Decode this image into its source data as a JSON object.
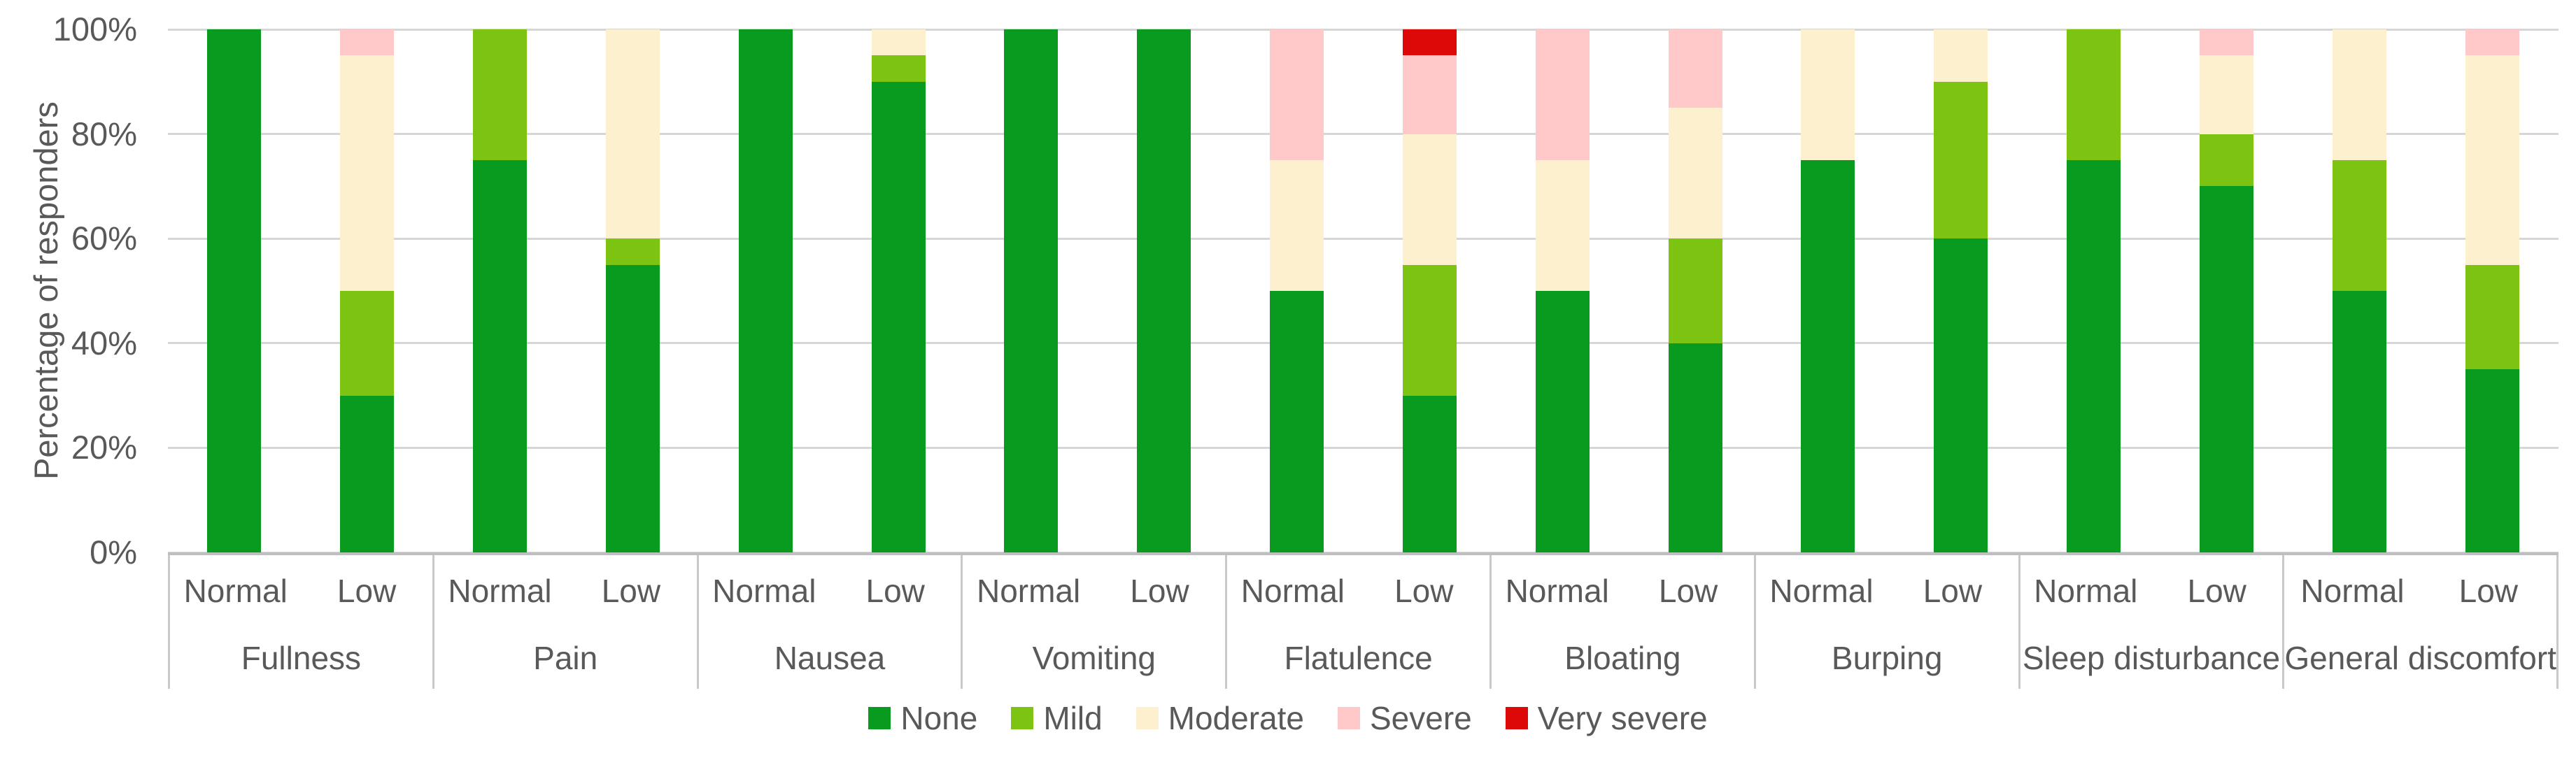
{
  "chart_data": {
    "type": "bar",
    "variant": "stacked-100-percent",
    "ylabel": "Percentage of responders",
    "ylim": [
      0,
      100
    ],
    "y_ticks": [
      "0%",
      "20%",
      "40%",
      "60%",
      "80%",
      "100%"
    ],
    "grid": true,
    "legend_position": "bottom",
    "sub_categories": [
      "Normal",
      "Low"
    ],
    "severity_levels": [
      {
        "name": "None",
        "color": "#099b20"
      },
      {
        "name": "Mild",
        "color": "#7cc312"
      },
      {
        "name": "Moderate",
        "color": "#fdf0ce"
      },
      {
        "name": "Severe",
        "color": "#ffc9ca"
      },
      {
        "name": "Very severe",
        "color": "#dd0909"
      }
    ],
    "groups": [
      {
        "label": "Fullness",
        "bars": [
          {
            "sub": "Normal",
            "values": [
              100,
              0,
              0,
              0,
              0
            ]
          },
          {
            "sub": "Low",
            "values": [
              30,
              20,
              45,
              5,
              0
            ]
          }
        ]
      },
      {
        "label": "Pain",
        "bars": [
          {
            "sub": "Normal",
            "values": [
              75,
              25,
              0,
              0,
              0
            ]
          },
          {
            "sub": "Low",
            "values": [
              55,
              5,
              40,
              0,
              0
            ]
          }
        ]
      },
      {
        "label": "Nausea",
        "bars": [
          {
            "sub": "Normal",
            "values": [
              100,
              0,
              0,
              0,
              0
            ]
          },
          {
            "sub": "Low",
            "values": [
              90,
              5,
              5,
              0,
              0
            ]
          }
        ]
      },
      {
        "label": "Vomiting",
        "bars": [
          {
            "sub": "Normal",
            "values": [
              100,
              0,
              0,
              0,
              0
            ]
          },
          {
            "sub": "Low",
            "values": [
              100,
              0,
              0,
              0,
              0
            ]
          }
        ]
      },
      {
        "label": "Flatulence",
        "bars": [
          {
            "sub": "Normal",
            "values": [
              50,
              0,
              25,
              25,
              0
            ]
          },
          {
            "sub": "Low",
            "values": [
              30,
              25,
              25,
              15,
              5
            ]
          }
        ]
      },
      {
        "label": "Bloating",
        "bars": [
          {
            "sub": "Normal",
            "values": [
              50,
              0,
              25,
              25,
              0
            ]
          },
          {
            "sub": "Low",
            "values": [
              40,
              20,
              25,
              15,
              0
            ]
          }
        ]
      },
      {
        "label": "Burping",
        "bars": [
          {
            "sub": "Normal",
            "values": [
              75,
              0,
              25,
              0,
              0
            ]
          },
          {
            "sub": "Low",
            "values": [
              60,
              30,
              10,
              0,
              0
            ]
          }
        ]
      },
      {
        "label": "Sleep disturbance",
        "bars": [
          {
            "sub": "Normal",
            "values": [
              75,
              25,
              0,
              0,
              0
            ]
          },
          {
            "sub": "Low",
            "values": [
              70,
              10,
              15,
              5,
              0
            ]
          }
        ]
      },
      {
        "label": "General discomfort",
        "bars": [
          {
            "sub": "Normal",
            "values": [
              50,
              25,
              25,
              0,
              0
            ]
          },
          {
            "sub": "Low",
            "values": [
              35,
              20,
              40,
              5,
              0
            ]
          }
        ]
      }
    ]
  }
}
